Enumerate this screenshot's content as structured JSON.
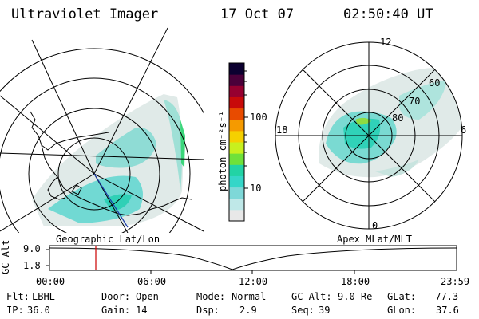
{
  "header": {
    "instrument": "Ultraviolet Imager",
    "date": "17 Oct 07",
    "time": "02:50:40 UT"
  },
  "geo_map": {
    "label": "Geographic Lat/Lon"
  },
  "apex_map": {
    "label": "Apex MLat/MLT",
    "lat_labels": [
      "60",
      "70",
      "80"
    ],
    "mlt_labels": [
      "12",
      "18",
      "6",
      "0"
    ]
  },
  "colorbar": {
    "unit_label": "photon cm⁻²s⁻¹",
    "ticks": [
      "100",
      "10"
    ],
    "colors": [
      "#e8e8e8",
      "#bfe8e8",
      "#7ed8d8",
      "#35d6c8",
      "#22d3a5",
      "#6fe13a",
      "#c8f01e",
      "#f5d000",
      "#f59a00",
      "#e84b00",
      "#c80a0a",
      "#960030",
      "#4b003a",
      "#0c0030"
    ]
  },
  "altitude_plot": {
    "ylabel": "GC Alt",
    "y_ticks": [
      "9.0",
      "1.8"
    ],
    "x_ticks": [
      "00:00",
      "06:00",
      "12:00",
      "18:00",
      "23:59"
    ],
    "current_marker_time": "02:50:40",
    "marker_color": "#cc0000"
  },
  "info": {
    "row1": [
      {
        "label": "Flt:",
        "value": "LBHL"
      },
      {
        "label": "Door:",
        "value": "Open"
      },
      {
        "label": "Mode:",
        "value": "Normal"
      },
      {
        "label": "GC Alt:",
        "value": "9.0 Re"
      },
      {
        "label": "GLat:",
        "value": "-77.3"
      }
    ],
    "row2": [
      {
        "label": "IP:",
        "value": "36.0"
      },
      {
        "label": "Gain:",
        "value": "14"
      },
      {
        "label": "Dsp:",
        "value": "2.9"
      },
      {
        "label": "Seq:",
        "value": "39"
      },
      {
        "label": "GLon:",
        "value": "37.6"
      }
    ]
  }
}
